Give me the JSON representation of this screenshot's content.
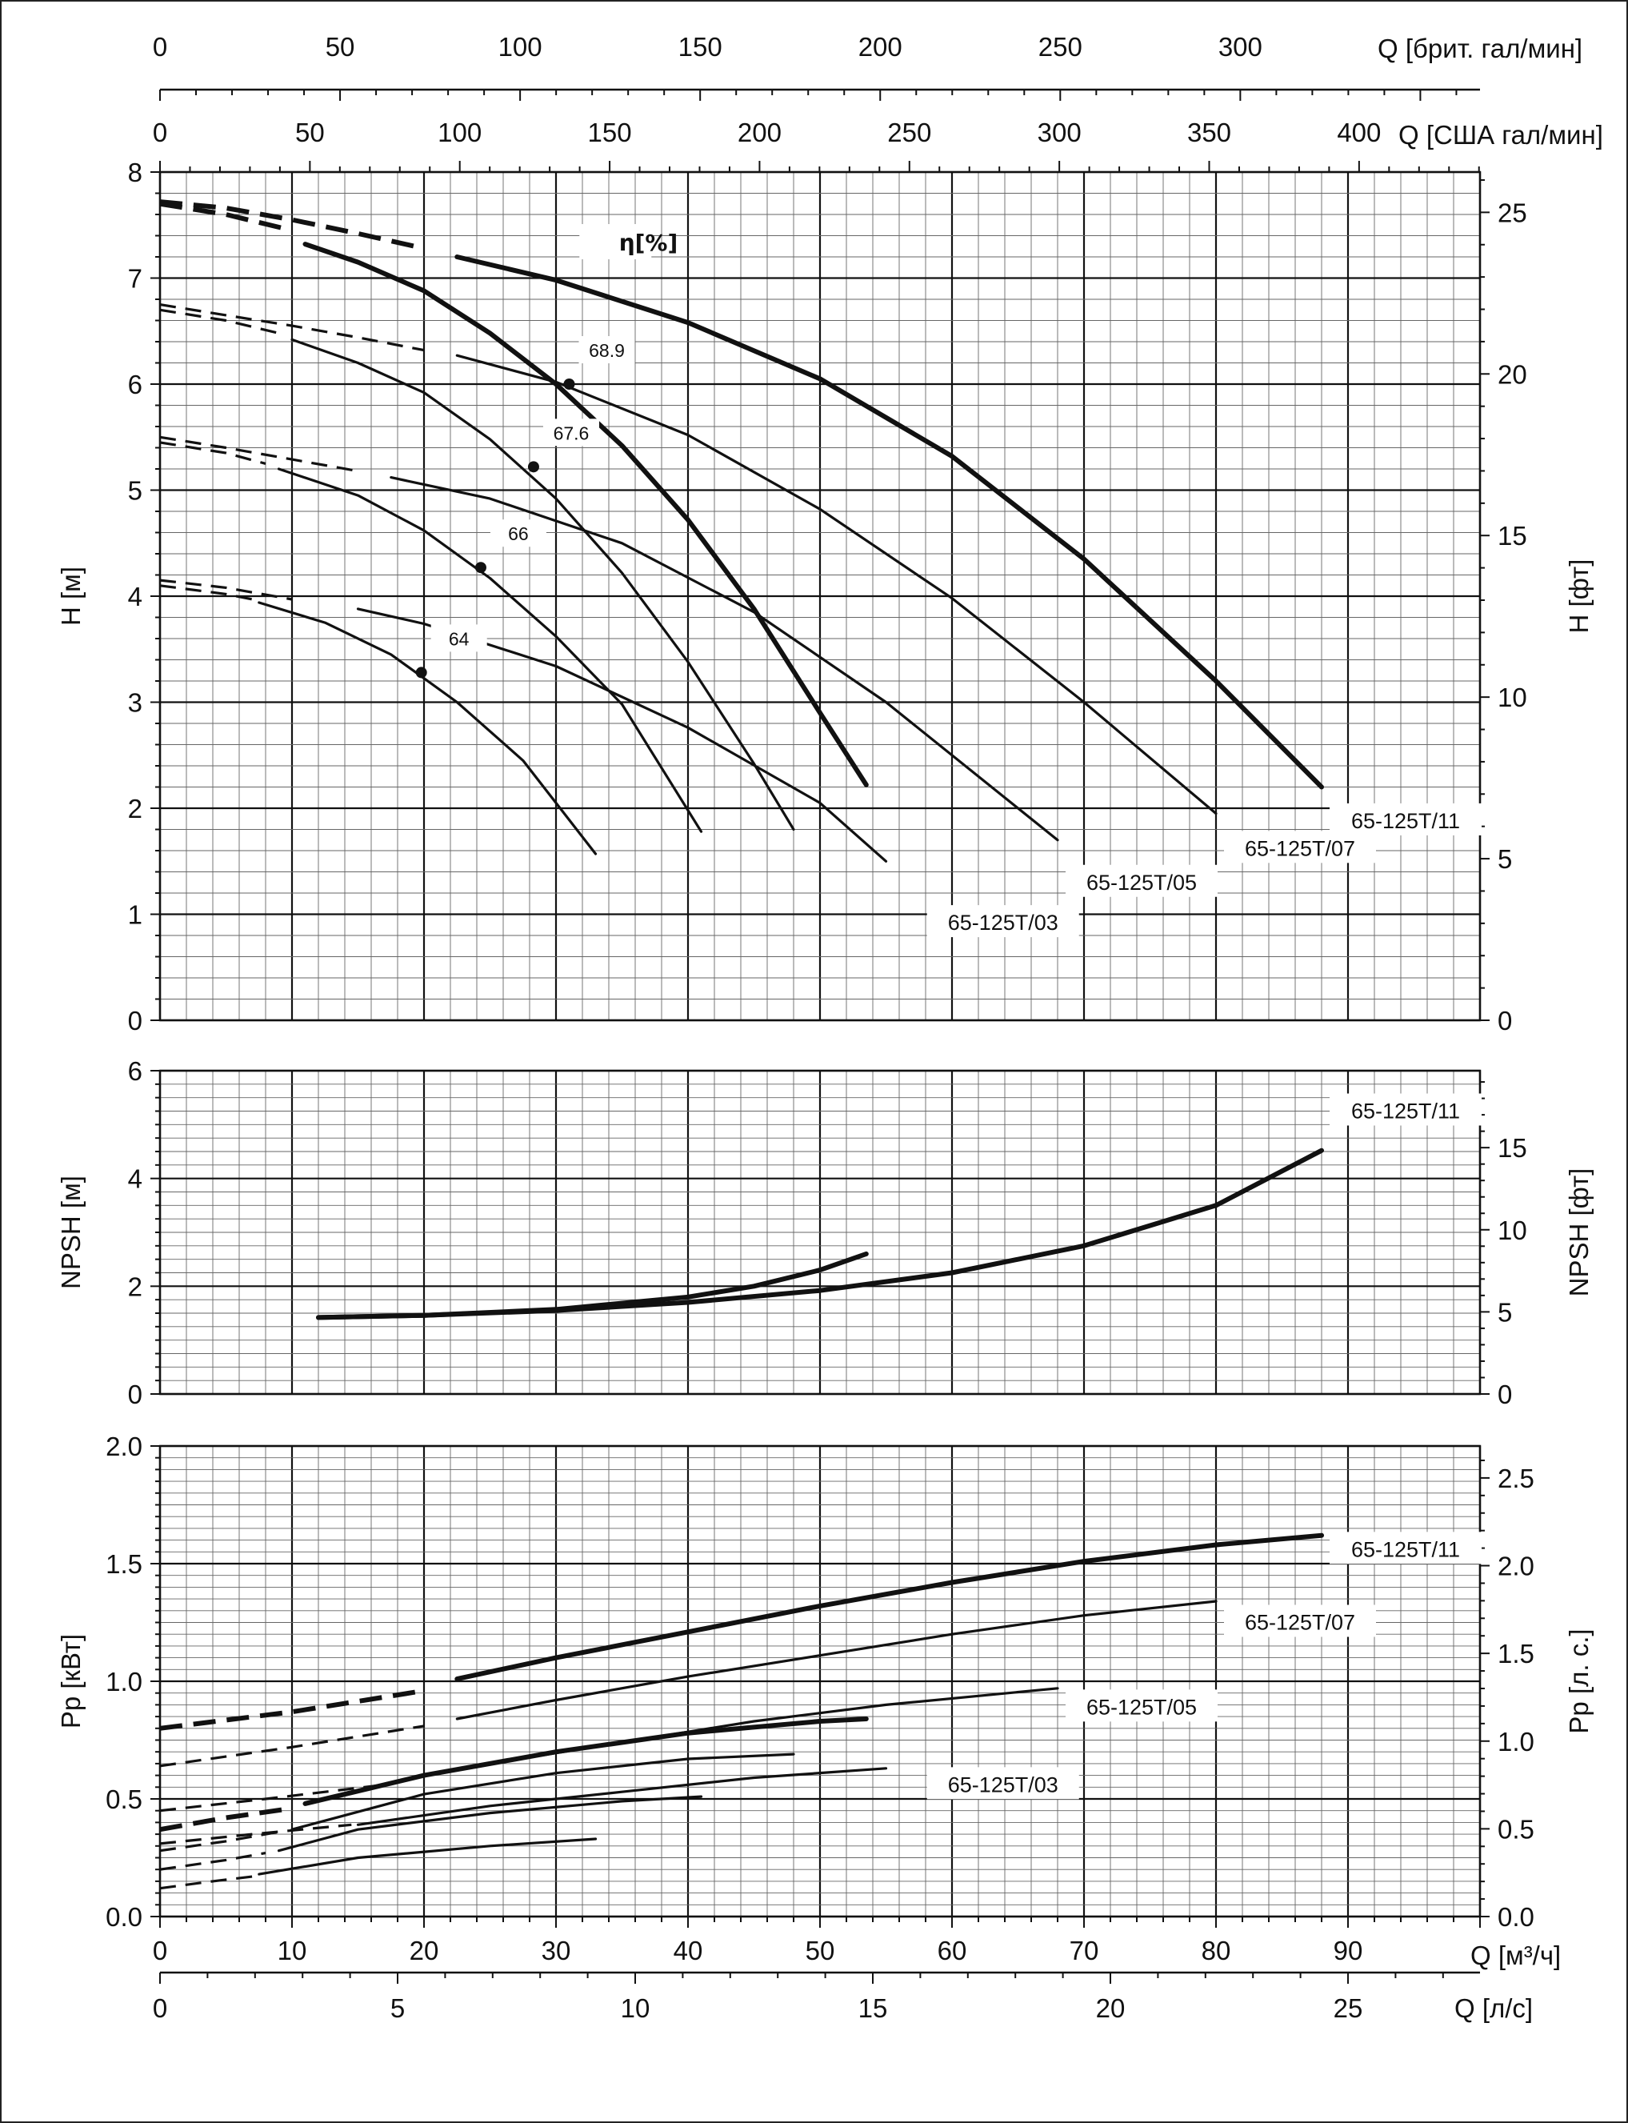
{
  "chart_data": [
    {
      "id": "head",
      "type": "line",
      "xlabel": "Q [м³/ч]",
      "ylabel": "H [м]",
      "ylabel_right": "H [фт]",
      "xlim": [
        0,
        100
      ],
      "ylim": [
        0,
        8
      ],
      "grid": true,
      "y_ticks": [
        "0",
        "1",
        "2",
        "3",
        "4",
        "5",
        "6",
        "7",
        "8"
      ],
      "y_ticks_right": [
        "0",
        "5",
        "10",
        "15",
        "20",
        "25"
      ],
      "efficiency_title": "η[%]",
      "efficiency_labels": [
        {
          "text": "68.9",
          "x": 31.0,
          "y": 6.0
        },
        {
          "text": "67.6",
          "x": 28.3,
          "y": 5.22
        },
        {
          "text": "66",
          "x": 24.3,
          "y": 4.27
        },
        {
          "text": "64",
          "x": 19.8,
          "y": 3.28
        }
      ],
      "series": [
        {
          "name": "65-125T/11",
          "weight": "thick",
          "dashed": [
            [
              0,
              7.72
            ],
            [
              5,
              7.66
            ],
            [
              10,
              7.55
            ],
            [
              15,
              7.42
            ],
            [
              20,
              7.28
            ]
          ],
          "solid": [
            [
              22.5,
              7.2
            ],
            [
              30,
              6.98
            ],
            [
              40,
              6.58
            ],
            [
              50,
              6.05
            ],
            [
              60,
              5.32
            ],
            [
              70,
              4.35
            ],
            [
              80,
              3.2
            ],
            [
              88,
              2.2
            ]
          ]
        },
        {
          "name": "65-125T/07",
          "weight": "thin",
          "dashed": [
            [
              0,
              6.75
            ],
            [
              5,
              6.65
            ],
            [
              10,
              6.55
            ],
            [
              15,
              6.44
            ],
            [
              20,
              6.32
            ]
          ],
          "solid": [
            [
              22.5,
              6.27
            ],
            [
              30,
              6.02
            ],
            [
              40,
              5.52
            ],
            [
              50,
              4.82
            ],
            [
              60,
              3.98
            ],
            [
              70,
              3.0
            ],
            [
              80,
              1.95
            ]
          ]
        },
        {
          "name": "65-125T/05",
          "weight": "thin",
          "dashed": [
            [
              0,
              5.5
            ],
            [
              5,
              5.4
            ],
            [
              10,
              5.29
            ],
            [
              15,
              5.18
            ]
          ],
          "solid": [
            [
              17.5,
              5.12
            ],
            [
              25,
              4.92
            ],
            [
              35,
              4.5
            ],
            [
              45,
              3.85
            ],
            [
              55,
              3.0
            ],
            [
              65,
              2.0
            ],
            [
              68,
              1.7
            ]
          ]
        },
        {
          "name": "65-125T/03",
          "weight": "thin",
          "dashed": [
            [
              0,
              4.15
            ],
            [
              5,
              4.08
            ],
            [
              10,
              3.97
            ]
          ],
          "solid": [
            [
              15,
              3.88
            ],
            [
              20,
              3.74
            ],
            [
              30,
              3.34
            ],
            [
              40,
              2.76
            ],
            [
              50,
              2.05
            ],
            [
              55,
              1.5
            ]
          ]
        },
        {
          "name": "",
          "weight": "thick",
          "dashed": [
            [
              0,
              7.7
            ],
            [
              5,
              7.6
            ],
            [
              10,
              7.45
            ]
          ],
          "solid": [
            [
              11,
              7.32
            ],
            [
              15,
              7.15
            ],
            [
              20,
              6.88
            ],
            [
              25,
              6.48
            ],
            [
              30,
              6.0
            ],
            [
              35,
              5.42
            ],
            [
              40,
              4.72
            ],
            [
              45,
              3.88
            ],
            [
              50,
              2.9
            ],
            [
              53.5,
              2.22
            ]
          ]
        },
        {
          "name": "",
          "weight": "thin",
          "dashed": [
            [
              0,
              6.7
            ],
            [
              5,
              6.6
            ],
            [
              9,
              6.48
            ]
          ],
          "solid": [
            [
              10,
              6.42
            ],
            [
              15,
              6.2
            ],
            [
              20,
              5.92
            ],
            [
              25,
              5.48
            ],
            [
              30,
              4.92
            ],
            [
              35,
              4.22
            ],
            [
              40,
              3.38
            ],
            [
              45,
              2.42
            ],
            [
              48,
              1.8
            ]
          ]
        },
        {
          "name": "",
          "weight": "thin",
          "dashed": [
            [
              0,
              5.45
            ],
            [
              5,
              5.35
            ],
            [
              8,
              5.25
            ]
          ],
          "solid": [
            [
              9,
              5.2
            ],
            [
              15,
              4.95
            ],
            [
              20,
              4.62
            ],
            [
              25,
              4.17
            ],
            [
              30,
              3.62
            ],
            [
              35,
              2.98
            ],
            [
              41,
              1.78
            ]
          ]
        },
        {
          "name": "",
          "weight": "thin",
          "dashed": [
            [
              0,
              4.1
            ],
            [
              5,
              4.02
            ],
            [
              7,
              3.97
            ]
          ],
          "solid": [
            [
              7.5,
              3.94
            ],
            [
              12.5,
              3.75
            ],
            [
              17.5,
              3.45
            ],
            [
              22.5,
              3.0
            ],
            [
              27.5,
              2.45
            ],
            [
              33,
              1.57
            ]
          ]
        }
      ],
      "labels": [
        {
          "text": "65-125T/11",
          "x": 88,
          "y": 1.88
        },
        {
          "text": "65-125T/07",
          "x": 80,
          "y": 1.62
        },
        {
          "text": "65-125T/05",
          "x": 68,
          "y": 1.3
        },
        {
          "text": "65-125T/03",
          "x": 57.5,
          "y": 0.92
        }
      ]
    },
    {
      "id": "npsh",
      "type": "line",
      "xlabel": "Q [м³/ч]",
      "ylabel": "NPSH [м]",
      "ylabel_right": "NPSH [фт]",
      "xlim": [
        0,
        100
      ],
      "ylim": [
        0,
        6
      ],
      "grid": true,
      "y_ticks": [
        "0",
        "2",
        "4",
        "6"
      ],
      "y_ticks_right": [
        "0",
        "5",
        "10",
        "15"
      ],
      "series": [
        {
          "name": "65-125T/11",
          "weight": "thick",
          "solid": [
            [
              12,
              1.42
            ],
            [
              20,
              1.46
            ],
            [
              30,
              1.55
            ],
            [
              40,
              1.7
            ],
            [
              50,
              1.92
            ],
            [
              60,
              2.25
            ],
            [
              70,
              2.75
            ],
            [
              80,
              3.5
            ],
            [
              88,
              4.52
            ]
          ]
        },
        {
          "name": "",
          "weight": "thick",
          "solid": [
            [
              12,
              1.42
            ],
            [
              20,
              1.46
            ],
            [
              30,
              1.57
            ],
            [
              40,
              1.8
            ],
            [
              45,
              2.0
            ],
            [
              50,
              2.3
            ],
            [
              53.5,
              2.6
            ]
          ]
        }
      ],
      "labels": [
        {
          "text": "65-125T/11",
          "x": 88,
          "y": 5.25
        }
      ]
    },
    {
      "id": "power",
      "type": "line",
      "xlabel": "Q [м³/ч]",
      "ylabel": "Pp [кВт]",
      "ylabel_right": "Pp [л. с.]",
      "xlim": [
        0,
        100
      ],
      "ylim": [
        0,
        2
      ],
      "grid": true,
      "y_ticks": [
        "0.0",
        "0.5",
        "1.0",
        "1.5",
        "2.0"
      ],
      "y_ticks_right": [
        "0.0",
        "0.5",
        "1.0",
        "1.5",
        "2.0",
        "2.5"
      ],
      "series": [
        {
          "name": "65-125T/11",
          "weight": "thick",
          "dashed": [
            [
              0,
              0.8
            ],
            [
              10,
              0.87
            ],
            [
              20,
              0.96
            ]
          ],
          "solid": [
            [
              22.5,
              1.01
            ],
            [
              30,
              1.1
            ],
            [
              40,
              1.21
            ],
            [
              50,
              1.32
            ],
            [
              60,
              1.42
            ],
            [
              70,
              1.51
            ],
            [
              80,
              1.58
            ],
            [
              88,
              1.62
            ]
          ]
        },
        {
          "name": "65-125T/07",
          "weight": "thin",
          "dashed": [
            [
              0,
              0.64
            ],
            [
              10,
              0.72
            ],
            [
              20,
              0.81
            ]
          ],
          "solid": [
            [
              22.5,
              0.84
            ],
            [
              30,
              0.92
            ],
            [
              40,
              1.02
            ],
            [
              50,
              1.11
            ],
            [
              60,
              1.2
            ],
            [
              70,
              1.28
            ],
            [
              80,
              1.34
            ]
          ]
        },
        {
          "name": "65-125T/05",
          "weight": "thin",
          "dashed": [
            [
              0,
              0.45
            ],
            [
              8,
              0.5
            ],
            [
              17,
              0.56
            ]
          ],
          "solid": [
            [
              17.5,
              0.57
            ],
            [
              25,
              0.65
            ],
            [
              35,
              0.74
            ],
            [
              45,
              0.83
            ],
            [
              55,
              0.9
            ],
            [
              68,
              0.97
            ]
          ]
        },
        {
          "name": "65-125T/03",
          "weight": "thin",
          "dashed": [
            [
              0,
              0.31
            ],
            [
              7,
              0.35
            ],
            [
              14.5,
              0.39
            ]
          ],
          "solid": [
            [
              15,
              0.39
            ],
            [
              25,
              0.47
            ],
            [
              35,
              0.53
            ],
            [
              45,
              0.59
            ],
            [
              55,
              0.63
            ]
          ]
        },
        {
          "name": "",
          "weight": "thick",
          "dashed": [
            [
              0,
              0.37
            ],
            [
              5,
              0.42
            ],
            [
              10,
              0.46
            ]
          ],
          "solid": [
            [
              11,
              0.48
            ],
            [
              20,
              0.6
            ],
            [
              30,
              0.7
            ],
            [
              40,
              0.78
            ],
            [
              50,
              0.83
            ],
            [
              53.5,
              0.84
            ]
          ]
        },
        {
          "name": "",
          "weight": "thin",
          "dashed": [
            [
              0,
              0.28
            ],
            [
              5,
              0.32
            ],
            [
              9,
              0.36
            ]
          ],
          "solid": [
            [
              10,
              0.37
            ],
            [
              20,
              0.52
            ],
            [
              30,
              0.61
            ],
            [
              40,
              0.67
            ],
            [
              48,
              0.69
            ]
          ]
        },
        {
          "name": "",
          "weight": "thin",
          "dashed": [
            [
              0,
              0.2
            ],
            [
              5,
              0.24
            ],
            [
              8,
              0.27
            ]
          ],
          "solid": [
            [
              9,
              0.28
            ],
            [
              15,
              0.37
            ],
            [
              25,
              0.44
            ],
            [
              35,
              0.49
            ],
            [
              41,
              0.51
            ]
          ]
        },
        {
          "name": "",
          "weight": "thin",
          "dashed": [
            [
              0,
              0.12
            ],
            [
              4,
              0.15
            ],
            [
              7,
              0.17
            ]
          ],
          "solid": [
            [
              7.5,
              0.18
            ],
            [
              15,
              0.25
            ],
            [
              25,
              0.3
            ],
            [
              33,
              0.33
            ]
          ]
        }
      ],
      "labels": [
        {
          "text": "65-125T/11",
          "x": 88,
          "y": 1.56
        },
        {
          "text": "65-125T/07",
          "x": 80,
          "y": 1.25
        },
        {
          "text": "65-125T/05",
          "x": 68,
          "y": 0.89
        },
        {
          "text": "65-125T/03",
          "x": 57.5,
          "y": 0.56
        }
      ]
    }
  ],
  "axes": {
    "x_main": {
      "label": "Q [м³/ч]",
      "ticks": [
        {
          "value": 0,
          "label": "0"
        },
        {
          "value": 10,
          "label": "10"
        },
        {
          "value": 20,
          "label": "20"
        },
        {
          "value": 30,
          "label": "30"
        },
        {
          "value": 40,
          "label": "40"
        },
        {
          "value": 50,
          "label": "50"
        },
        {
          "value": 60,
          "label": "60"
        },
        {
          "value": 70,
          "label": "70"
        },
        {
          "value": 80,
          "label": "80"
        },
        {
          "value": 90,
          "label": "90"
        }
      ]
    },
    "x_ls": {
      "label": "Q [л/с]",
      "ticks": [
        {
          "value": 0,
          "label": "0"
        },
        {
          "value": 5,
          "label": "5"
        },
        {
          "value": 10,
          "label": "10"
        },
        {
          "value": 15,
          "label": "15"
        },
        {
          "value": 20,
          "label": "20"
        },
        {
          "value": 25,
          "label": "25"
        }
      ]
    },
    "x_brit": {
      "label": "Q [брит. гал/мин]",
      "ticks": [
        {
          "value": 0,
          "label": "0"
        },
        {
          "value": 50,
          "label": "50"
        },
        {
          "value": 100,
          "label": "100"
        },
        {
          "value": 150,
          "label": "150"
        },
        {
          "value": 200,
          "label": "200"
        },
        {
          "value": 250,
          "label": "250"
        },
        {
          "value": 300,
          "label": "300"
        }
      ]
    },
    "x_usa": {
      "label": "Q [США гал/мин]",
      "ticks": [
        {
          "value": 0,
          "label": "0"
        },
        {
          "value": 50,
          "label": "50"
        },
        {
          "value": 100,
          "label": "100"
        },
        {
          "value": 150,
          "label": "150"
        },
        {
          "value": 200,
          "label": "200"
        },
        {
          "value": 250,
          "label": "250"
        },
        {
          "value": 300,
          "label": "300"
        },
        {
          "value": 350,
          "label": "350"
        },
        {
          "value": 400,
          "label": "400"
        }
      ]
    }
  }
}
